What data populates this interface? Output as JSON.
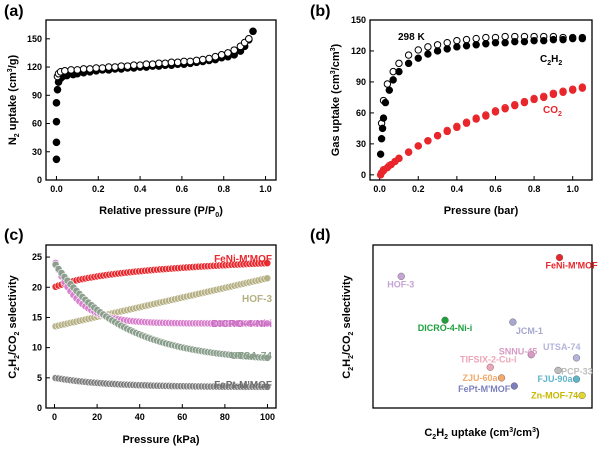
{
  "chart_data": [
    {
      "panel": "(a)",
      "type": "scatter",
      "xlabel": "Relative pressure (P/P0)",
      "ylabel": "N2 uptake (cm3/g)",
      "xlim": [
        -0.05,
        1.05
      ],
      "ylim": [
        0,
        170
      ],
      "xticks": [
        "0.0",
        "0.2",
        "0.4",
        "0.6",
        "0.8",
        "1.0"
      ],
      "yticks": [
        "0",
        "30",
        "60",
        "90",
        "120",
        "150"
      ],
      "series": [
        {
          "marker": "filled",
          "x": [
            0.0,
            0.0,
            0.0,
            0.0,
            0.005,
            0.01,
            0.02,
            0.03,
            0.05,
            0.08,
            0.1,
            0.13,
            0.16,
            0.19,
            0.22,
            0.25,
            0.28,
            0.31,
            0.34,
            0.37,
            0.4,
            0.43,
            0.46,
            0.49,
            0.52,
            0.55,
            0.58,
            0.61,
            0.64,
            0.67,
            0.7,
            0.73,
            0.76,
            0.79,
            0.82,
            0.85,
            0.88,
            0.9,
            0.92,
            0.94
          ],
          "y": [
            22,
            40,
            62,
            82,
            96,
            104,
            108,
            110,
            111,
            112,
            113,
            114,
            115,
            116,
            117,
            117,
            118,
            118,
            119,
            119,
            120,
            120,
            121,
            121,
            122,
            122,
            123,
            123,
            124,
            125,
            126,
            127,
            128,
            130,
            131,
            133,
            137,
            142,
            149,
            158
          ]
        },
        {
          "marker": "open",
          "x": [
            0.005,
            0.01,
            0.02,
            0.04,
            0.07,
            0.1,
            0.13,
            0.16,
            0.19,
            0.22,
            0.25,
            0.28,
            0.31,
            0.34,
            0.37,
            0.4,
            0.43,
            0.46,
            0.49,
            0.52,
            0.55,
            0.58,
            0.61,
            0.64,
            0.67,
            0.7,
            0.73,
            0.76,
            0.79,
            0.82,
            0.85,
            0.88,
            0.9,
            0.92
          ],
          "y": [
            110,
            113,
            115,
            116,
            117,
            117,
            118,
            118,
            119,
            119,
            120,
            120,
            121,
            121,
            122,
            122,
            123,
            123,
            124,
            124,
            125,
            125,
            126,
            126,
            127,
            128,
            129,
            131,
            133,
            135,
            138,
            142,
            146,
            150
          ]
        }
      ]
    },
    {
      "panel": "(b)",
      "type": "scatter",
      "xlabel": "Pressure (bar)",
      "ylabel": "Gas uptake (cm3/cm3)",
      "xlim": [
        -0.05,
        1.1
      ],
      "ylim": [
        -5,
        150
      ],
      "xticks": [
        "0.0",
        "0.2",
        "0.4",
        "0.6",
        "0.8",
        "1.0"
      ],
      "yticks": [
        "0",
        "30",
        "60",
        "90",
        "120",
        "150"
      ],
      "annotation": "298 K",
      "series": [
        {
          "name": "C2H2",
          "color": "#000000",
          "filled": {
            "x": [
              0.005,
              0.01,
              0.015,
              0.02,
              0.03,
              0.05,
              0.07,
              0.1,
              0.15,
              0.2,
              0.25,
              0.3,
              0.35,
              0.4,
              0.45,
              0.5,
              0.55,
              0.6,
              0.65,
              0.7,
              0.75,
              0.8,
              0.85,
              0.9,
              0.95,
              1.0,
              1.05
            ],
            "y": [
              20,
              35,
              45,
              55,
              70,
              82,
              92,
              100,
              108,
              113,
              117,
              120,
              122,
              124,
              125,
              126,
              127,
              128,
              128,
              129,
              129,
              130,
              130,
              131,
              131,
              132,
              132
            ]
          },
          "open": {
            "x": [
              0.01,
              0.02,
              0.04,
              0.07,
              0.1,
              0.15,
              0.2,
              0.25,
              0.3,
              0.35,
              0.4,
              0.45,
              0.5,
              0.55,
              0.6,
              0.65,
              0.7,
              0.75,
              0.8,
              0.85,
              0.9,
              0.95,
              1.0,
              1.05
            ],
            "y": [
              50,
              72,
              88,
              100,
              108,
              116,
              121,
              124,
              126,
              128,
              130,
              131,
              132,
              133,
              133,
              134,
              134,
              134,
              134,
              134,
              134,
              133,
              133,
              133
            ]
          }
        },
        {
          "name": "CO2",
          "color": "#e8262b",
          "filled": {
            "x": [
              0.005,
              0.01,
              0.02,
              0.04,
              0.06,
              0.08,
              0.1,
              0.15,
              0.2,
              0.25,
              0.3,
              0.35,
              0.4,
              0.45,
              0.5,
              0.55,
              0.6,
              0.65,
              0.7,
              0.75,
              0.8,
              0.85,
              0.9,
              0.95,
              1.0,
              1.05
            ],
            "y": [
              0,
              2,
              4,
              7,
              10,
              13,
              16,
              22,
              28,
              33,
              38,
              42,
              46,
              50,
              54,
              57,
              61,
              64,
              67,
              70,
              73,
              75,
              78,
              80,
              82,
              84
            ]
          },
          "open": {
            "x": [
              0.02,
              0.05,
              0.1,
              0.15,
              0.2,
              0.25,
              0.3,
              0.35,
              0.4,
              0.45,
              0.5,
              0.55,
              0.6,
              0.65,
              0.7,
              0.75,
              0.8,
              0.85,
              0.9,
              0.95,
              1.0,
              1.05
            ],
            "y": [
              5,
              9,
              16,
              22,
              28,
              33,
              38,
              43,
              47,
              51,
              55,
              58,
              62,
              65,
              68,
              71,
              74,
              76,
              79,
              81,
              83,
              85
            ]
          }
        }
      ]
    },
    {
      "panel": "(c)",
      "type": "scatter",
      "xlabel": "Pressure (kPa)",
      "ylabel": "C2H2/CO2 selectivity",
      "xlim": [
        -4,
        104
      ],
      "ylim": [
        0,
        27
      ],
      "xticks": [
        "0",
        "20",
        "40",
        "60",
        "80",
        "100"
      ],
      "yticks": [
        "0",
        "5",
        "10",
        "15",
        "20",
        "25"
      ],
      "series": [
        {
          "name": "FeNi-M'MOF",
          "color": "#e8262b",
          "start": 20.0,
          "end": 24.0,
          "shape": "log"
        },
        {
          "name": "HOF-3",
          "color": "#b5b083",
          "start": 13.5,
          "end": 21.5,
          "shape": "linear"
        },
        {
          "name": "DICRO-4-Ni-i",
          "color": "#d77dcc",
          "start": 24.5,
          "end": 14.0,
          "shape": "decay_fast"
        },
        {
          "name": "UTSA-74",
          "color": "#8a9e8c",
          "start": 24.0,
          "end": 8.3,
          "shape": "decay_slow"
        },
        {
          "name": "FePt-M'MOF",
          "color": "#7d7d7d",
          "start": 5.0,
          "end": 3.5,
          "shape": "decay_mild"
        }
      ]
    },
    {
      "panel": "(d)",
      "type": "scatter",
      "xlabel": "C2H2 uptake (cm3/cm3)",
      "ylabel": "C2H2/CO2 selectivity",
      "xlim": [
        0,
        155
      ],
      "ylim": [
        0,
        26
      ],
      "points": [
        {
          "name": "FeNi-M'MOF",
          "x": 132,
          "y": 24.0,
          "color": "#e8262b"
        },
        {
          "name": "HOF-3",
          "x": 20,
          "y": 21.0,
          "color": "#c6a4d4"
        },
        {
          "name": "DICRO-4-Ni-i",
          "x": 51,
          "y": 14.0,
          "color": "#1e9f3c"
        },
        {
          "name": "JCM-1",
          "x": 99,
          "y": 13.7,
          "color": "#a6a8cf"
        },
        {
          "name": "SNNU-45",
          "x": 112,
          "y": 8.5,
          "color": "#d89ac3"
        },
        {
          "name": "UTSA-74",
          "x": 144,
          "y": 8.0,
          "color": "#b3b3dc"
        },
        {
          "name": "TIFSIX-2-Cu-i",
          "x": 83,
          "y": 6.5,
          "color": "#f0a4b8"
        },
        {
          "name": "PCP-33",
          "x": 131,
          "y": 6.0,
          "color": "#bdbdbd"
        },
        {
          "name": "ZJU-60a",
          "x": 91,
          "y": 4.8,
          "color": "#f2a96a"
        },
        {
          "name": "FJU-90a",
          "x": 144,
          "y": 4.6,
          "color": "#5fb5c8"
        },
        {
          "name": "FePt-M'MOF",
          "x": 100,
          "y": 3.5,
          "color": "#7b7fbd"
        },
        {
          "name": "Zn-MOF-74",
          "x": 148,
          "y": 2.0,
          "color": "#e3d62e"
        }
      ]
    }
  ],
  "labels": {
    "a": {
      "panel": "(a)",
      "xlabel": "Relative pressure (P/P",
      "xlabel_sub": "0",
      "xlabel_end": ")",
      "ylabel_pre": "N",
      "ylabel_sub": "2",
      "ylabel_mid": " uptake (cm",
      "ylabel_sup": "3",
      "ylabel_end": "/g)"
    },
    "b": {
      "panel": "(b)",
      "xlabel": "Pressure (bar)",
      "ylabel_pre": "Gas uptake (cm",
      "ylabel_sup1": "3",
      "ylabel_mid": "/cm",
      "ylabel_sup2": "3",
      "ylabel_end": ")",
      "annot": "298 K",
      "c2h2_pre": "C",
      "c2h2_s1": "2",
      "c2h2_mid": "H",
      "c2h2_s2": "2",
      "co2_pre": "CO",
      "co2_s": "2"
    },
    "c": {
      "panel": "(c)",
      "xlabel": "Pressure (kPa)",
      "y_c": "C",
      "y_s1": "2",
      "y_h": "H",
      "y_s2": "2",
      "y_co": "/CO",
      "y_s3": "2",
      "y_end": " selectivity",
      "s1": "FeNi-M'MOF",
      "s2": "HOF-3",
      "s3": "DICRO-4-Ni-i",
      "s4": "UTSA-74",
      "s5": "FePt-M'MOF"
    },
    "d": {
      "panel": "(d)",
      "x_c": "C",
      "x_s1": "2",
      "x_h": "H",
      "x_s2": "2",
      "x_mid": " uptake (cm",
      "x_sup1": "3",
      "x_slash": "/cm",
      "x_sup2": "3",
      "x_end": ")",
      "y_c": "C",
      "y_s1": "2",
      "y_h": "H",
      "y_s2": "2",
      "y_co": "/CO",
      "y_s3": "2",
      "y_end": " selectivity"
    }
  }
}
